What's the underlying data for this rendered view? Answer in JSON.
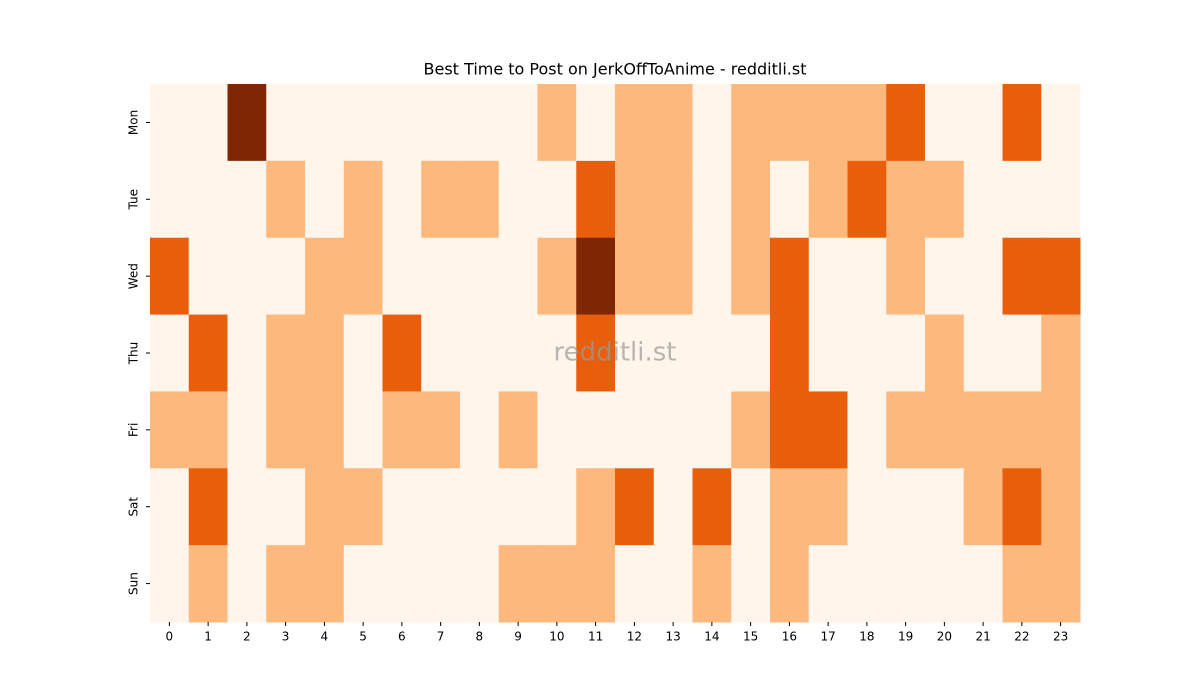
{
  "chart_data": {
    "type": "heatmap",
    "title": "Best Time to Post on JerkOffToAnime - redditli.st",
    "watermark": "redditli.st",
    "categories": [
      0,
      1,
      2,
      3,
      4,
      5,
      6,
      7,
      8,
      9,
      10,
      11,
      12,
      13,
      14,
      15,
      16,
      17,
      18,
      19,
      20,
      21,
      22,
      23
    ],
    "rows": [
      "Mon",
      "Tue",
      "Wed",
      "Thu",
      "Fri",
      "Sat",
      "Sun"
    ],
    "values": [
      [
        0,
        0,
        3,
        0,
        0,
        0,
        0,
        0,
        0,
        0,
        1,
        0,
        1,
        1,
        0,
        1,
        1,
        1,
        1,
        2,
        0,
        0,
        2,
        0
      ],
      [
        0,
        0,
        0,
        1,
        0,
        1,
        0,
        1,
        1,
        0,
        0,
        2,
        1,
        1,
        0,
        1,
        0,
        1,
        2,
        1,
        1,
        0,
        0,
        0
      ],
      [
        2,
        0,
        0,
        0,
        1,
        1,
        0,
        0,
        0,
        0,
        1,
        3,
        1,
        1,
        0,
        1,
        2,
        0,
        0,
        1,
        0,
        0,
        2,
        2
      ],
      [
        0,
        2,
        0,
        1,
        1,
        0,
        2,
        0,
        0,
        0,
        0,
        2,
        0,
        0,
        0,
        0,
        2,
        0,
        0,
        0,
        1,
        0,
        0,
        1
      ],
      [
        1,
        1,
        0,
        1,
        1,
        0,
        1,
        1,
        0,
        1,
        0,
        0,
        0,
        0,
        0,
        1,
        2,
        2,
        0,
        1,
        1,
        1,
        1,
        1
      ],
      [
        0,
        2,
        0,
        0,
        1,
        1,
        0,
        0,
        0,
        0,
        0,
        1,
        2,
        0,
        2,
        0,
        1,
        1,
        0,
        0,
        0,
        1,
        2,
        1
      ],
      [
        0,
        1,
        0,
        1,
        1,
        0,
        0,
        0,
        0,
        1,
        1,
        1,
        0,
        0,
        1,
        0,
        1,
        0,
        0,
        0,
        0,
        0,
        1,
        1
      ]
    ],
    "colors": [
      "#fff5eb",
      "#fdb97d",
      "#e95e0d",
      "#7f2704"
    ]
  }
}
